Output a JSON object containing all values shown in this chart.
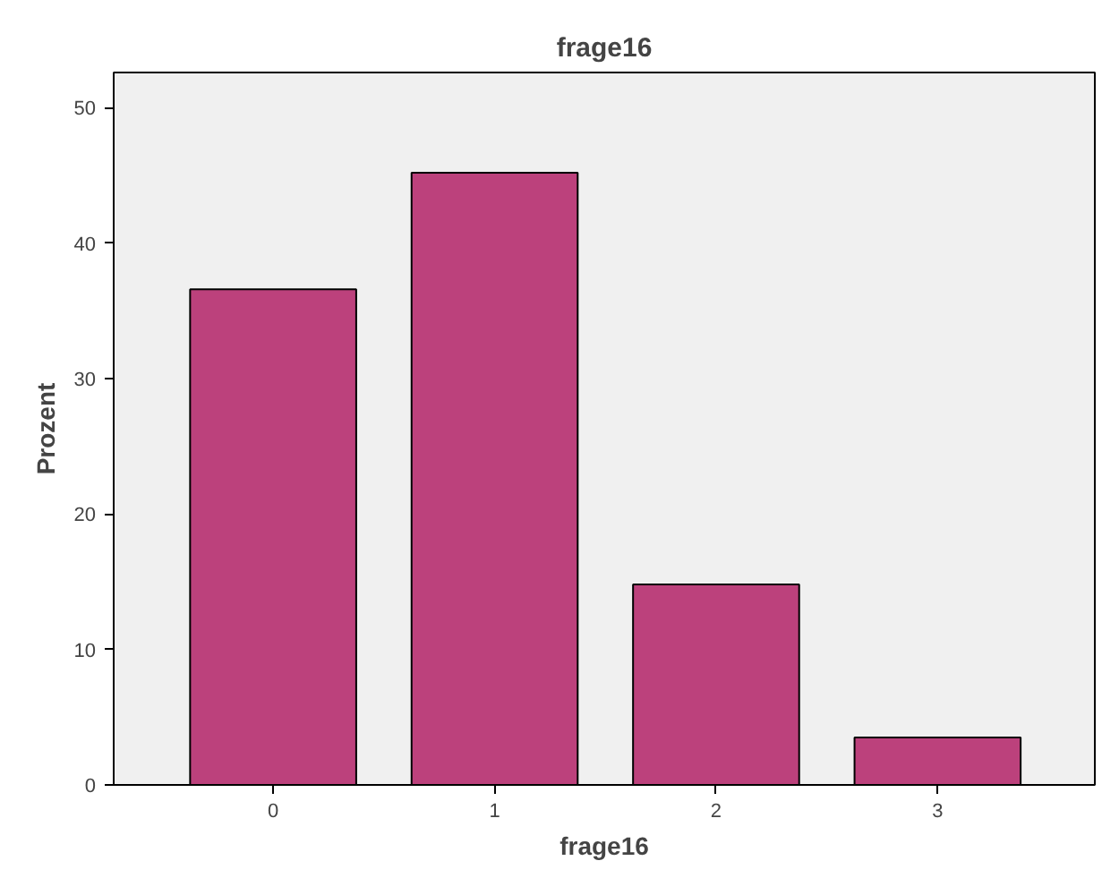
{
  "chart_data": {
    "type": "bar",
    "title": "frage16",
    "xlabel": "frage16",
    "ylabel": "Prozent",
    "categories": [
      "0",
      "1",
      "2",
      "3"
    ],
    "values": [
      36.6,
      45.2,
      14.8,
      3.5
    ],
    "color": "#bc417c",
    "ylim": [
      0,
      52.6
    ],
    "yticks": [
      0,
      10,
      20,
      30,
      40,
      50
    ],
    "grid": false
  }
}
